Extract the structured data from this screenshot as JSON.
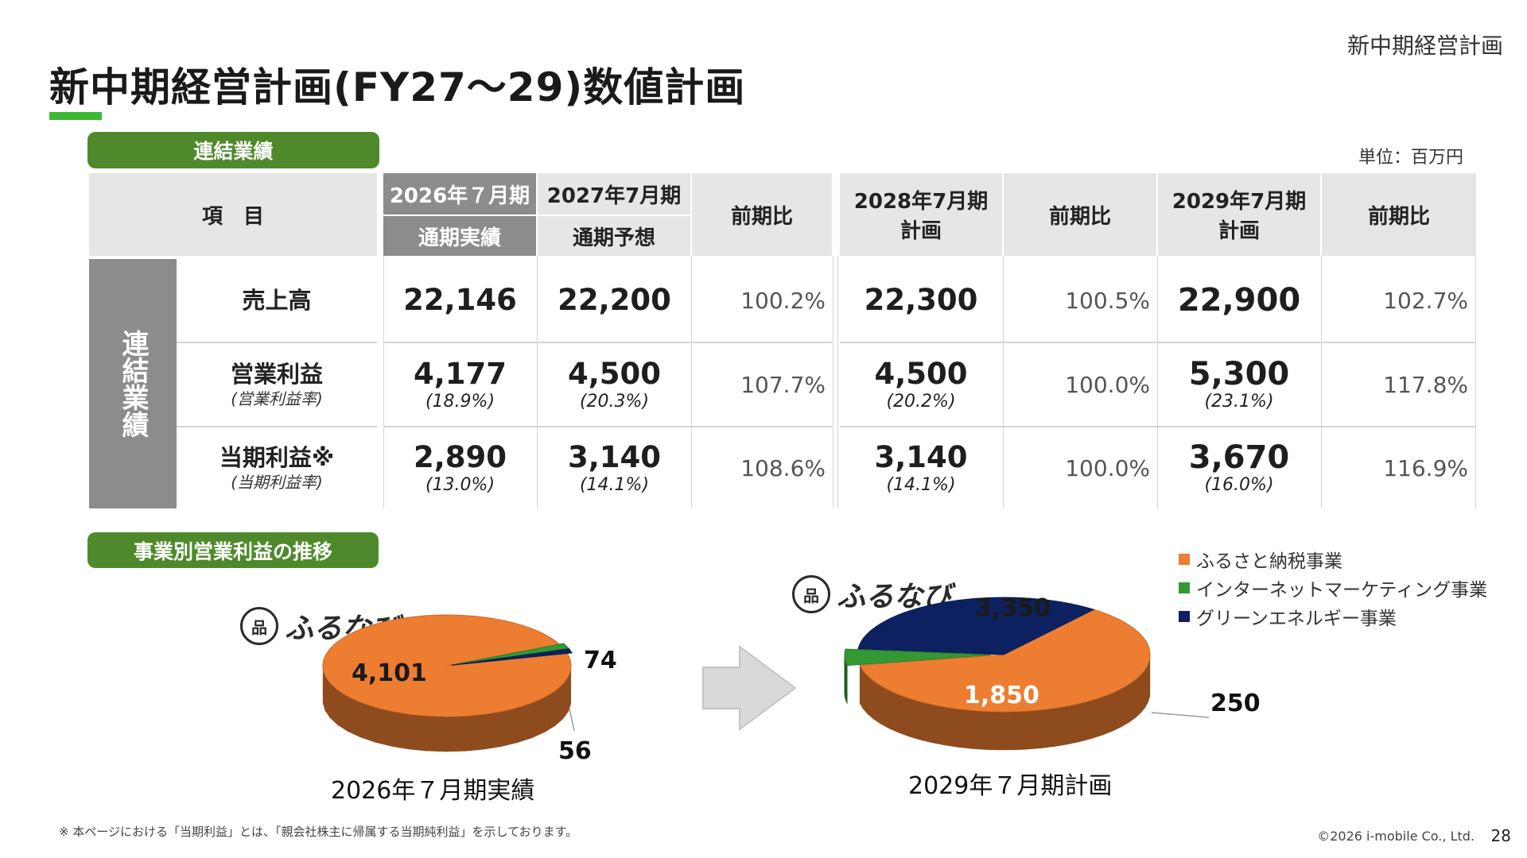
{
  "header": {
    "section_label": "新中期経営計画",
    "title": "新中期経営計画(FY27～29)数値計画"
  },
  "consolidated": {
    "pill_label": "連結業績",
    "unit": "単位：百万円",
    "header": {
      "item": "項　目",
      "fy2026": "2026年７月期",
      "fy2026_sub": "通期実績",
      "fy2027": "2027年7月期",
      "fy2027_sub": "通期予想",
      "yoy": "前期比",
      "fy2028_line1": "2028年7月期",
      "fy2028_line2": "計画",
      "fy2029_line1": "2029年7月期",
      "fy2029_line2": "計画"
    },
    "side_label": "連結業績",
    "rows": [
      {
        "item": "売上高",
        "item_sub": "",
        "fy2026": "22,146",
        "fy2026_sub": "",
        "fy2027": "22,200",
        "fy2027_sub": "",
        "yoy2027": "100.2%",
        "fy2028": "22,300",
        "fy2028_sub": "",
        "yoy2028": "100.5%",
        "fy2029": "22,900",
        "fy2029_sub": "",
        "yoy2029": "102.7%"
      },
      {
        "item": "営業利益",
        "item_sub": "(営業利益率)",
        "fy2026": "4,177",
        "fy2026_sub": "(18.9%)",
        "fy2027": "4,500",
        "fy2027_sub": "(20.3%)",
        "yoy2027": "107.7%",
        "fy2028": "4,500",
        "fy2028_sub": "(20.2%)",
        "yoy2028": "100.0%",
        "fy2029": "5,300",
        "fy2029_sub": "(23.1%)",
        "yoy2029": "117.8%"
      },
      {
        "item": "当期利益※",
        "item_sub": "(当期利益率)",
        "fy2026": "2,890",
        "fy2026_sub": "(13.0%)",
        "fy2027": "3,140",
        "fy2027_sub": "(14.1%)",
        "yoy2027": "108.6%",
        "fy2028": "3,140",
        "fy2028_sub": "(14.1%)",
        "yoy2028": "100.0%",
        "fy2029": "3,670",
        "fy2029_sub": "(16.0%)",
        "yoy2029": "116.9%"
      }
    ]
  },
  "segment": {
    "pill_label": "事業別営業利益の推移",
    "logo_text": "ふるなび",
    "logo_mark": "品"
  },
  "chart_data": [
    {
      "type": "pie",
      "title": "2026年７月期実績",
      "categories": [
        "ふるさと納税事業",
        "インターネットマーケティング事業",
        "グリーンエネルギー事業"
      ],
      "values": [
        4101,
        74,
        56
      ],
      "labels": [
        "4,101",
        "74",
        "56"
      ],
      "colors": [
        "#ed7d31",
        "#339933",
        "#0d2160"
      ]
    },
    {
      "type": "pie",
      "title": "2029年７月期計画",
      "categories": [
        "ふるさと納税事業",
        "インターネットマーケティング事業",
        "グリーンエネルギー事業"
      ],
      "values": [
        3350,
        250,
        1850
      ],
      "labels": [
        "3,350",
        "250",
        "1,850"
      ],
      "colors": [
        "#ed7d31",
        "#339933",
        "#0d2160"
      ],
      "legend": "top-right"
    }
  ],
  "footer": {
    "footnote": "※ 本ページにおける「当期利益」とは、「親会社株主に帰属する当期純利益」を示しております。",
    "copyright": "©2026 i-mobile Co., Ltd.",
    "page_number": "28"
  }
}
